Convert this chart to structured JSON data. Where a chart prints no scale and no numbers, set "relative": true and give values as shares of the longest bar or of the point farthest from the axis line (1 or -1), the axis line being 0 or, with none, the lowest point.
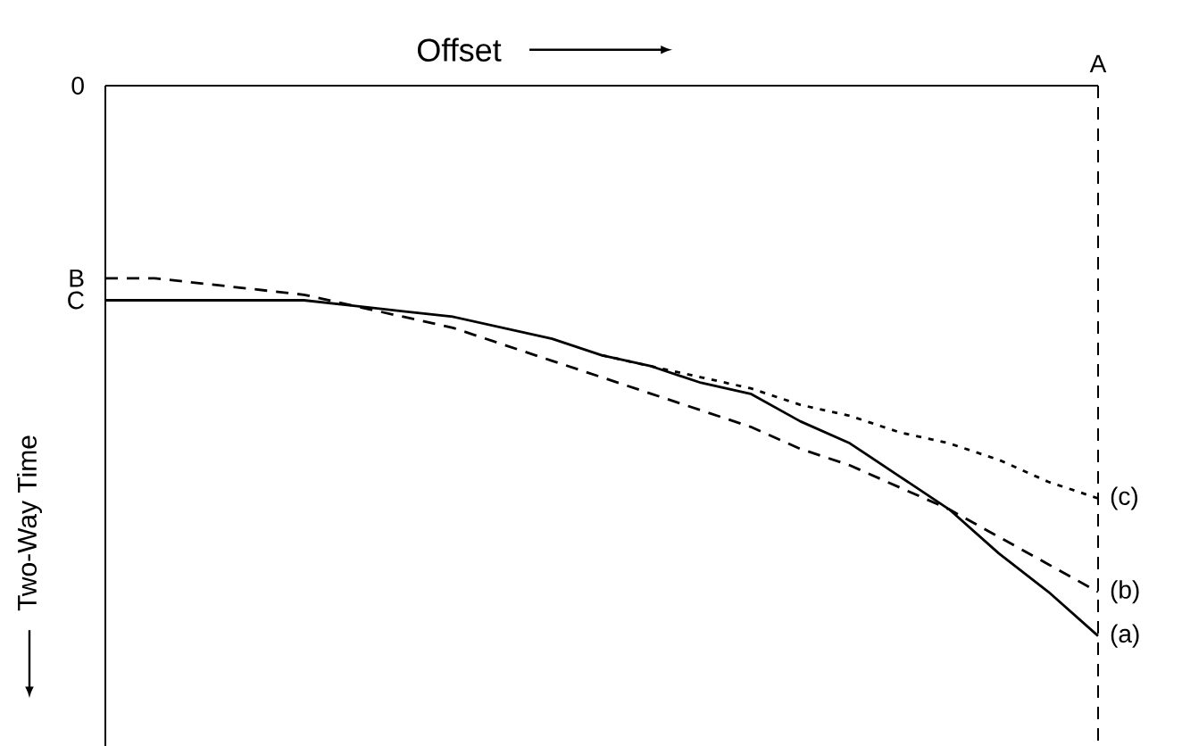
{
  "chart_data": {
    "type": "line",
    "relative": true,
    "xlabel": "Offset",
    "ylabel": "Two-Way Time",
    "categories": [
      null,
      null,
      null,
      null,
      null,
      null,
      null,
      null,
      null,
      null,
      null,
      null,
      null,
      null,
      null,
      null,
      null,
      null,
      null,
      null,
      null
    ],
    "series": [
      {
        "name": "(a)",
        "color": "#000000",
        "line_style": "solid",
        "values": [
          -0.39,
          -0.39,
          -0.39,
          -0.39,
          -0.39,
          -0.4,
          -0.41,
          -0.42,
          -0.44,
          -0.46,
          -0.49,
          -0.51,
          -0.54,
          -0.56,
          -0.61,
          -0.65,
          -0.71,
          -0.77,
          -0.85,
          -0.92,
          -1
        ]
      },
      {
        "name": "(b)",
        "color": "#000000",
        "line_style": "dashed",
        "values": [
          -0.35,
          -0.35,
          -0.36,
          -0.37,
          -0.38,
          -0.4,
          -0.42,
          -0.44,
          -0.47,
          -0.5,
          -0.53,
          -0.56,
          -0.59,
          -0.62,
          -0.66,
          -0.69,
          -0.73,
          -0.77,
          -0.82,
          -0.87,
          -0.92
        ]
      },
      {
        "name": "(c)",
        "color": "#000000",
        "line_style": "dotted",
        "values": [
          null,
          null,
          null,
          null,
          null,
          null,
          null,
          null,
          null,
          null,
          -0.49,
          -0.51,
          -0.53,
          -0.55,
          -0.58,
          -0.6,
          -0.63,
          -0.65,
          -0.68,
          -0.72,
          -0.75
        ]
      }
    ],
    "annotations": [
      "0",
      "B",
      "C",
      "A"
    ]
  }
}
